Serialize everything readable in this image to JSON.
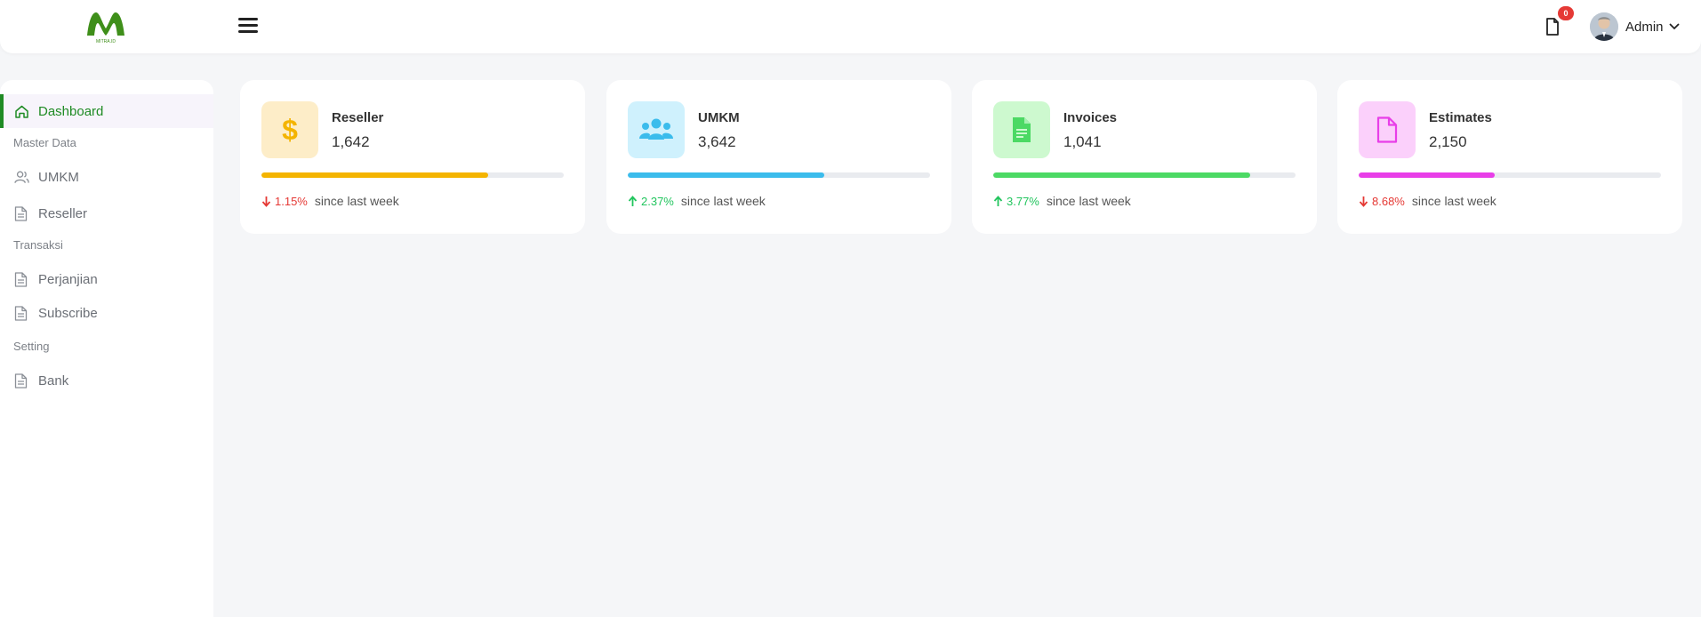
{
  "header": {
    "logo_text": "MITRA.ID",
    "notification_count": "0",
    "user_name": "Admin",
    "colors": {
      "brand": "#1f8b24",
      "badge": "#e53935"
    }
  },
  "sidebar": {
    "items": [
      {
        "label": "Dashboard",
        "icon": "home-icon",
        "active": true
      },
      {
        "section": "Master Data"
      },
      {
        "label": "UMKM",
        "icon": "users-icon"
      },
      {
        "label": "Reseller",
        "icon": "document-icon"
      },
      {
        "section": "Transaksi"
      },
      {
        "label": "Perjanjian",
        "icon": "document-icon"
      },
      {
        "label": "Subscribe",
        "icon": "document-icon"
      },
      {
        "section": "Setting"
      },
      {
        "label": "Bank",
        "icon": "document-icon"
      }
    ]
  },
  "cards": [
    {
      "label": "Reseller",
      "value": "1,642",
      "progress": 0.75,
      "trend": "down",
      "change": "1.15%",
      "since": "since last week",
      "icon": "dollar-icon",
      "color": "#f4b400",
      "bg": "#fdedc8"
    },
    {
      "label": "UMKM",
      "value": "3,642",
      "progress": 0.65,
      "trend": "up",
      "change": "2.37%",
      "since": "since last week",
      "icon": "users-icon",
      "color": "#3bbcec",
      "bg": "#cff1fd"
    },
    {
      "label": "Invoices",
      "value": "1,041",
      "progress": 0.85,
      "trend": "up",
      "change": "3.77%",
      "since": "since last week",
      "icon": "invoice-icon",
      "color": "#4cd964",
      "bg": "#cdf9cf"
    },
    {
      "label": "Estimates",
      "value": "2,150",
      "progress": 0.45,
      "trend": "down",
      "change": "8.68%",
      "since": "since last week",
      "icon": "file-icon",
      "color": "#e83ee8",
      "bg": "#fbd0fb"
    }
  ],
  "trend_colors": {
    "up": "#22c55e",
    "down": "#e53935"
  }
}
